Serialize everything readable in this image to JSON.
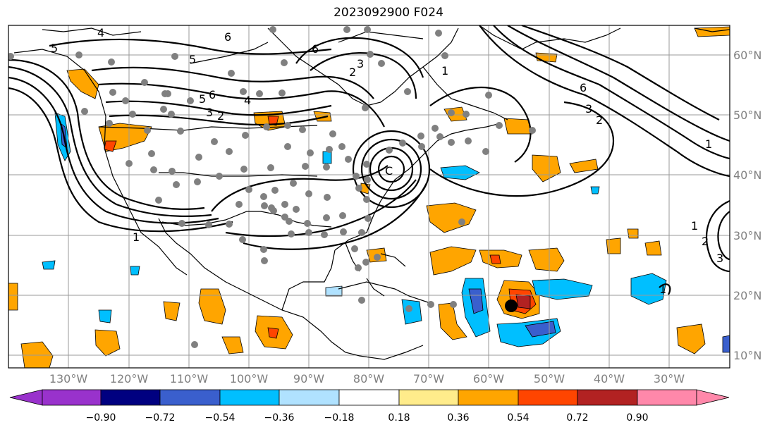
{
  "title": "2023092900 F024",
  "map": {
    "lon_labels": [
      "130°W",
      "120°W",
      "110°W",
      "100°W",
      "90°W",
      "80°W",
      "70°W",
      "60°W",
      "50°W",
      "40°W",
      "30°W"
    ],
    "lat_labels": [
      "60°N",
      "50°N",
      "40°N",
      "30°N",
      "20°N",
      "10°N"
    ],
    "contour_labels": [
      "5",
      "4",
      "6",
      "5",
      "6",
      "5",
      "3",
      "2",
      "4",
      "6",
      "3",
      "2",
      "C",
      "1",
      "6",
      "3",
      "2",
      "1",
      "1",
      "2",
      "3",
      "1",
      "1"
    ],
    "storm_marker": "black-dot"
  },
  "colorbar": {
    "ticks": [
      "−0.90",
      "−0.72",
      "−0.54",
      "−0.36",
      "−0.18",
      "0.18",
      "0.36",
      "0.54",
      "0.72",
      "0.90"
    ],
    "colors": [
      "#9932cc",
      "#000080",
      "#3a5fcd",
      "#00bfff",
      "#b0e2ff",
      "#ffffff",
      "#ffec8b",
      "#ffa500",
      "#ff4500",
      "#b22222",
      "#ff88aa"
    ]
  }
}
